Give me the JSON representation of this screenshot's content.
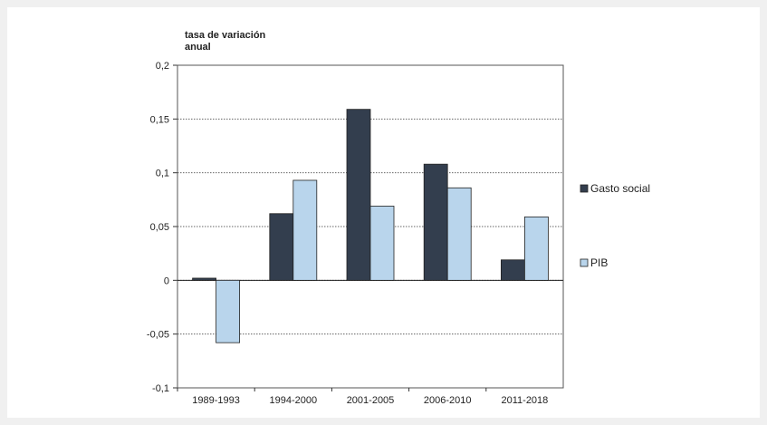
{
  "chart_data": {
    "type": "bar",
    "title_lines": [
      "tasa de variación",
      "anual"
    ],
    "categories": [
      "1989-1993",
      "1994-2000",
      "2001-2005",
      "2006-2010",
      "2011-2018"
    ],
    "series": [
      {
        "name": "Gasto social",
        "color": "#333e4e",
        "values": [
          0.002,
          0.062,
          0.159,
          0.108,
          0.019
        ]
      },
      {
        "name": "PIB",
        "color": "#b9d5ec",
        "values": [
          -0.058,
          0.093,
          0.069,
          0.086,
          0.059
        ]
      }
    ],
    "ylim": [
      -0.1,
      0.2
    ],
    "yticks": [
      {
        "value": 0.2,
        "label": "0,2"
      },
      {
        "value": 0.15,
        "label": "0,15"
      },
      {
        "value": 0.1,
        "label": "0,1"
      },
      {
        "value": 0.05,
        "label": "0,05"
      },
      {
        "value": 0,
        "label": "0"
      },
      {
        "value": -0.05,
        "label": "-0,05"
      },
      {
        "value": -0.1,
        "label": "-0,1"
      }
    ],
    "grid": true,
    "legend_position": "right"
  }
}
